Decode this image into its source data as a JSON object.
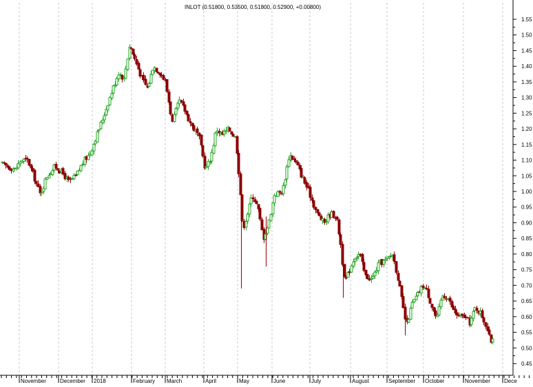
{
  "chart_data": {
    "type": "candlestick",
    "title": "INLOT (0.51800, 0.53500, 0.51800, 0.52900, +0.00800)",
    "symbol": "INLOT",
    "last_ohlc": {
      "open": 0.518,
      "high": 0.535,
      "low": 0.518,
      "close": 0.529,
      "change": 0.008
    },
    "ylim": [
      0.42,
      1.58
    ],
    "y_ticks": [
      "0.45",
      "0.50",
      "0.55",
      "0.60",
      "0.65",
      "0.70",
      "0.75",
      "0.80",
      "0.85",
      "0.90",
      "0.95",
      "1.00",
      "1.05",
      "1.10",
      "1.15",
      "1.20",
      "1.25",
      "1.30",
      "1.35",
      "1.40",
      "1.45",
      "1.50",
      "1.55"
    ],
    "x_labels": [
      "November",
      "December",
      "2018",
      "February",
      "March",
      "April",
      "May",
      "June",
      "July",
      "August",
      "September",
      "October",
      "November",
      "Dece"
    ],
    "grid": true,
    "y_axis_side": "right",
    "colors": {
      "up": "#1fa31f",
      "down": "#8b0000",
      "grid": "#c8c8c8",
      "axis": "#000000",
      "up_fill": "#ffffff"
    },
    "path_points": [
      [
        0,
        1.09
      ],
      [
        10,
        1.08
      ],
      [
        22,
        1.07
      ],
      [
        30,
        1.1
      ],
      [
        40,
        1.1
      ],
      [
        50,
        1.04
      ],
      [
        58,
        0.99
      ],
      [
        68,
        1.05
      ],
      [
        80,
        1.08
      ],
      [
        90,
        1.06
      ],
      [
        100,
        1.03
      ],
      [
        110,
        1.05
      ],
      [
        122,
        1.1
      ],
      [
        130,
        1.12
      ],
      [
        140,
        1.18
      ],
      [
        150,
        1.24
      ],
      [
        162,
        1.32
      ],
      [
        172,
        1.38
      ],
      [
        180,
        1.36
      ],
      [
        188,
        1.47
      ],
      [
        196,
        1.42
      ],
      [
        206,
        1.36
      ],
      [
        214,
        1.33
      ],
      [
        222,
        1.4
      ],
      [
        232,
        1.38
      ],
      [
        240,
        1.35
      ],
      [
        250,
        1.22
      ],
      [
        260,
        1.29
      ],
      [
        268,
        1.26
      ],
      [
        278,
        1.21
      ],
      [
        288,
        1.18
      ],
      [
        298,
        1.07
      ],
      [
        306,
        1.11
      ],
      [
        314,
        1.2
      ],
      [
        322,
        1.18
      ],
      [
        332,
        1.2
      ],
      [
        342,
        1.17
      ],
      [
        348,
        1.02
      ],
      [
        352,
        0.88
      ],
      [
        358,
        0.92
      ],
      [
        366,
        0.99
      ],
      [
        374,
        0.95
      ],
      [
        382,
        0.85
      ],
      [
        390,
        0.9
      ],
      [
        398,
        0.99
      ],
      [
        410,
        1.0
      ],
      [
        420,
        1.12
      ],
      [
        430,
        1.09
      ],
      [
        440,
        1.04
      ],
      [
        450,
        0.99
      ],
      [
        460,
        0.93
      ],
      [
        470,
        0.9
      ],
      [
        480,
        0.93
      ],
      [
        488,
        0.92
      ],
      [
        494,
        0.84
      ],
      [
        500,
        0.71
      ],
      [
        506,
        0.74
      ],
      [
        514,
        0.79
      ],
      [
        522,
        0.8
      ],
      [
        530,
        0.73
      ],
      [
        540,
        0.72
      ],
      [
        550,
        0.77
      ],
      [
        560,
        0.78
      ],
      [
        570,
        0.8
      ],
      [
        578,
        0.72
      ],
      [
        584,
        0.64
      ],
      [
        590,
        0.57
      ],
      [
        598,
        0.64
      ],
      [
        606,
        0.67
      ],
      [
        614,
        0.7
      ],
      [
        620,
        0.68
      ],
      [
        626,
        0.64
      ],
      [
        634,
        0.59
      ],
      [
        642,
        0.67
      ],
      [
        650,
        0.66
      ],
      [
        658,
        0.62
      ],
      [
        666,
        0.6
      ],
      [
        674,
        0.6
      ],
      [
        682,
        0.58
      ],
      [
        690,
        0.63
      ],
      [
        698,
        0.61
      ],
      [
        706,
        0.57
      ],
      [
        712,
        0.52
      ],
      [
        718,
        0.529
      ]
    ],
    "spikes": [
      {
        "x": 350,
        "low": 0.69,
        "high": 0.92
      },
      {
        "x": 386,
        "low": 0.76,
        "high": 0.92
      },
      {
        "x": 498,
        "low": 0.66,
        "high": 0.8
      },
      {
        "x": 588,
        "low": 0.54,
        "high": 0.62
      }
    ]
  }
}
